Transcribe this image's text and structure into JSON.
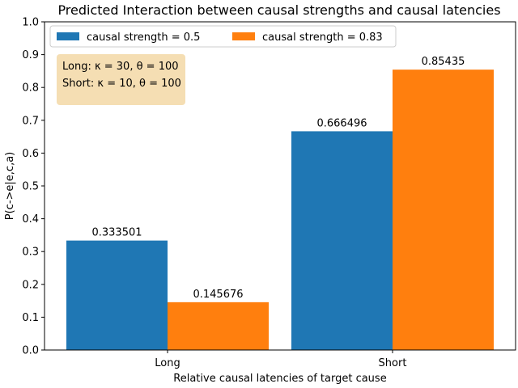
{
  "chart_data": {
    "type": "bar",
    "title": "Predicted Interaction between causal strengths and causal latencies",
    "xlabel": "Relative causal latencies of target cause",
    "ylabel": "P(c->e|e,c,a)",
    "categories": [
      "Long",
      "Short"
    ],
    "series": [
      {
        "name": "causal strength = 0.5",
        "values": [
          0.333501,
          0.666496
        ],
        "labels": [
          "0.333501",
          "0.666496"
        ],
        "color": "#1f77b4"
      },
      {
        "name": "causal strength = 0.83",
        "values": [
          0.145676,
          0.85435
        ],
        "labels": [
          "0.145676",
          "0.85435"
        ],
        "color": "#ff7f0e"
      }
    ],
    "ylim": [
      0,
      1.0
    ],
    "yticks": [
      "0.0",
      "0.1",
      "0.2",
      "0.3",
      "0.4",
      "0.5",
      "0.6",
      "0.7",
      "0.8",
      "0.9",
      "1.0"
    ],
    "grid": false,
    "legend_position": "top-left",
    "annotation": {
      "lines": [
        "Long: κ = 30, θ = 100",
        "Short: κ = 10, θ = 100"
      ],
      "background": "#f5deb3"
    }
  }
}
